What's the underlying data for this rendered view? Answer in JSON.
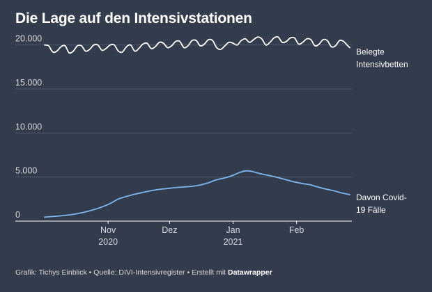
{
  "title": "Die Lage auf den Intensivstationen",
  "footer": {
    "grafik_label": "Grafik:",
    "grafik_value": "Tichys Einblick",
    "sep": " • ",
    "quelle_label": "Quelle:",
    "quelle_value": "DIVI-Intensivregister",
    "erstellt_label": "Erstellt mit",
    "erstellt_value": "Datawrapper"
  },
  "colors": {
    "background": "#333c4c",
    "grid": "#4f5868",
    "text": "#ffffff",
    "muted": "#d6dae0",
    "series_total": "#ffffff",
    "series_covid": "#7fb8f0"
  },
  "chart_data": {
    "type": "line",
    "title": "Die Lage auf den Intensivstationen",
    "xlabel": "",
    "ylabel": "",
    "xlim": [
      "2020-10-01",
      "2021-02-28"
    ],
    "ylim": [
      0,
      21000
    ],
    "grid": true,
    "y_ticks": [
      {
        "value": 0,
        "label": "0"
      },
      {
        "value": 5000,
        "label": "5.000"
      },
      {
        "value": 10000,
        "label": "10.000"
      },
      {
        "value": 15000,
        "label": "15.000"
      },
      {
        "value": 20000,
        "label": "20.000"
      }
    ],
    "x_ticks": [
      {
        "date": "2020-11-01",
        "label": "Nov",
        "sublabel": "2020"
      },
      {
        "date": "2020-12-01",
        "label": "Dez",
        "sublabel": ""
      },
      {
        "date": "2021-01-01",
        "label": "Jan",
        "sublabel": "2021"
      },
      {
        "date": "2021-02-01",
        "label": "Feb",
        "sublabel": ""
      }
    ],
    "series": [
      {
        "name": "Belegte Intensivbetten",
        "label_lines": [
          "Belegte",
          "Intensivbetten"
        ],
        "color": "#ffffff",
        "points": [
          {
            "x": "2020-10-01",
            "y": 20000
          },
          {
            "x": "2020-10-03",
            "y": 19900
          },
          {
            "x": "2020-10-05",
            "y": 19200
          },
          {
            "x": "2020-10-07",
            "y": 19300
          },
          {
            "x": "2020-10-09",
            "y": 19800
          },
          {
            "x": "2020-10-11",
            "y": 19900
          },
          {
            "x": "2020-10-13",
            "y": 19100
          },
          {
            "x": "2020-10-15",
            "y": 19300
          },
          {
            "x": "2020-10-17",
            "y": 19900
          },
          {
            "x": "2020-10-19",
            "y": 19900
          },
          {
            "x": "2020-10-21",
            "y": 19300
          },
          {
            "x": "2020-10-23",
            "y": 19500
          },
          {
            "x": "2020-10-25",
            "y": 20000
          },
          {
            "x": "2020-10-27",
            "y": 20000
          },
          {
            "x": "2020-10-29",
            "y": 19400
          },
          {
            "x": "2020-10-31",
            "y": 19600
          },
          {
            "x": "2020-11-02",
            "y": 20000
          },
          {
            "x": "2020-11-04",
            "y": 20000
          },
          {
            "x": "2020-11-06",
            "y": 19300
          },
          {
            "x": "2020-11-08",
            "y": 19200
          },
          {
            "x": "2020-11-10",
            "y": 19800
          },
          {
            "x": "2020-11-12",
            "y": 20000
          },
          {
            "x": "2020-11-14",
            "y": 19300
          },
          {
            "x": "2020-11-16",
            "y": 19600
          },
          {
            "x": "2020-11-18",
            "y": 20100
          },
          {
            "x": "2020-11-20",
            "y": 20200
          },
          {
            "x": "2020-11-22",
            "y": 19600
          },
          {
            "x": "2020-11-24",
            "y": 19800
          },
          {
            "x": "2020-11-26",
            "y": 20300
          },
          {
            "x": "2020-11-28",
            "y": 20200
          },
          {
            "x": "2020-11-30",
            "y": 19700
          },
          {
            "x": "2020-12-02",
            "y": 19900
          },
          {
            "x": "2020-12-04",
            "y": 20400
          },
          {
            "x": "2020-12-06",
            "y": 20400
          },
          {
            "x": "2020-12-08",
            "y": 19700
          },
          {
            "x": "2020-12-10",
            "y": 19900
          },
          {
            "x": "2020-12-12",
            "y": 20500
          },
          {
            "x": "2020-12-14",
            "y": 20500
          },
          {
            "x": "2020-12-16",
            "y": 19900
          },
          {
            "x": "2020-12-18",
            "y": 20100
          },
          {
            "x": "2020-12-20",
            "y": 20600
          },
          {
            "x": "2020-12-22",
            "y": 20500
          },
          {
            "x": "2020-12-24",
            "y": 19700
          },
          {
            "x": "2020-12-26",
            "y": 19500
          },
          {
            "x": "2020-12-28",
            "y": 19900
          },
          {
            "x": "2020-12-30",
            "y": 20300
          },
          {
            "x": "2021-01-01",
            "y": 20200
          },
          {
            "x": "2021-01-03",
            "y": 20000
          },
          {
            "x": "2021-01-05",
            "y": 20500
          },
          {
            "x": "2021-01-07",
            "y": 20700
          },
          {
            "x": "2021-01-09",
            "y": 20300
          },
          {
            "x": "2021-01-11",
            "y": 20600
          },
          {
            "x": "2021-01-13",
            "y": 20900
          },
          {
            "x": "2021-01-15",
            "y": 20700
          },
          {
            "x": "2021-01-17",
            "y": 20000
          },
          {
            "x": "2021-01-19",
            "y": 20300
          },
          {
            "x": "2021-01-21",
            "y": 20800
          },
          {
            "x": "2021-01-23",
            "y": 20900
          },
          {
            "x": "2021-01-25",
            "y": 20300
          },
          {
            "x": "2021-01-27",
            "y": 20400
          },
          {
            "x": "2021-01-29",
            "y": 20800
          },
          {
            "x": "2021-01-31",
            "y": 20800
          },
          {
            "x": "2021-02-02",
            "y": 20100
          },
          {
            "x": "2021-02-04",
            "y": 20300
          },
          {
            "x": "2021-02-06",
            "y": 20700
          },
          {
            "x": "2021-02-08",
            "y": 20600
          },
          {
            "x": "2021-02-10",
            "y": 19900
          },
          {
            "x": "2021-02-12",
            "y": 20100
          },
          {
            "x": "2021-02-14",
            "y": 20600
          },
          {
            "x": "2021-02-16",
            "y": 20500
          },
          {
            "x": "2021-02-18",
            "y": 19800
          },
          {
            "x": "2021-02-20",
            "y": 19900
          },
          {
            "x": "2021-02-22",
            "y": 20500
          },
          {
            "x": "2021-02-24",
            "y": 20400
          },
          {
            "x": "2021-02-26",
            "y": 19900
          },
          {
            "x": "2021-02-27",
            "y": 19700
          }
        ]
      },
      {
        "name": "Davon Covid-19 Fälle",
        "label_lines": [
          "Davon Covid-",
          "19 Fälle"
        ],
        "color": "#7fb8f0",
        "points": [
          {
            "x": "2020-10-01",
            "y": 450
          },
          {
            "x": "2020-10-05",
            "y": 520
          },
          {
            "x": "2020-10-09",
            "y": 600
          },
          {
            "x": "2020-10-13",
            "y": 700
          },
          {
            "x": "2020-10-17",
            "y": 850
          },
          {
            "x": "2020-10-21",
            "y": 1050
          },
          {
            "x": "2020-10-25",
            "y": 1300
          },
          {
            "x": "2020-10-29",
            "y": 1600
          },
          {
            "x": "2020-11-02",
            "y": 2000
          },
          {
            "x": "2020-11-06",
            "y": 2500
          },
          {
            "x": "2020-11-10",
            "y": 2800
          },
          {
            "x": "2020-11-14",
            "y": 3050
          },
          {
            "x": "2020-11-18",
            "y": 3250
          },
          {
            "x": "2020-11-22",
            "y": 3450
          },
          {
            "x": "2020-11-26",
            "y": 3600
          },
          {
            "x": "2020-11-30",
            "y": 3700
          },
          {
            "x": "2020-12-04",
            "y": 3800
          },
          {
            "x": "2020-12-08",
            "y": 3880
          },
          {
            "x": "2020-12-12",
            "y": 3950
          },
          {
            "x": "2020-12-16",
            "y": 4100
          },
          {
            "x": "2020-12-20",
            "y": 4350
          },
          {
            "x": "2020-12-24",
            "y": 4700
          },
          {
            "x": "2020-12-28",
            "y": 4900
          },
          {
            "x": "2021-01-01",
            "y": 5200
          },
          {
            "x": "2021-01-04",
            "y": 5500
          },
          {
            "x": "2021-01-07",
            "y": 5700
          },
          {
            "x": "2021-01-10",
            "y": 5650
          },
          {
            "x": "2021-01-14",
            "y": 5400
          },
          {
            "x": "2021-01-18",
            "y": 5200
          },
          {
            "x": "2021-01-22",
            "y": 5000
          },
          {
            "x": "2021-01-26",
            "y": 4750
          },
          {
            "x": "2021-01-30",
            "y": 4500
          },
          {
            "x": "2021-02-03",
            "y": 4300
          },
          {
            "x": "2021-02-07",
            "y": 4150
          },
          {
            "x": "2021-02-11",
            "y": 3900
          },
          {
            "x": "2021-02-15",
            "y": 3650
          },
          {
            "x": "2021-02-19",
            "y": 3450
          },
          {
            "x": "2021-02-23",
            "y": 3200
          },
          {
            "x": "2021-02-27",
            "y": 3000
          }
        ]
      }
    ]
  }
}
